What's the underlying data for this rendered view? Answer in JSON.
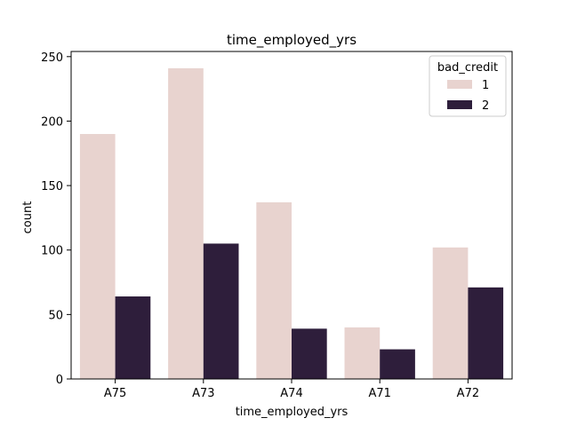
{
  "chart_data": {
    "type": "bar",
    "title": "time_employed_yrs",
    "xlabel": "time_employed_yrs",
    "ylabel": "count",
    "categories": [
      "A75",
      "A73",
      "A74",
      "A71",
      "A72"
    ],
    "series": [
      {
        "name": "1",
        "values": [
          190,
          241,
          137,
          40,
          102
        ],
        "color": "#e8d3cf"
      },
      {
        "name": "2",
        "values": [
          64,
          105,
          39,
          23,
          71
        ],
        "color": "#2e1e3b"
      }
    ],
    "ylim": [
      0,
      254
    ],
    "yticks": [
      0,
      50,
      100,
      150,
      200,
      250
    ],
    "legend": {
      "title": "bad_credit",
      "placement": "top-right"
    },
    "grid": false
  }
}
